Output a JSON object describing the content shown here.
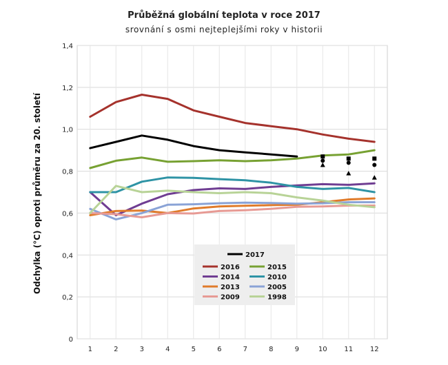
{
  "chart_data": {
    "type": "line",
    "title": "Průběžná globální teplota v roce 2017",
    "subtitle": "srovnání s osmi nejteplejšími roky v historii",
    "ylabel": "Odchylka (°C) oproti průměru za 20. století",
    "xlabel": "",
    "x": [
      1,
      2,
      3,
      4,
      5,
      6,
      7,
      8,
      9,
      10,
      11,
      12
    ],
    "ylim": [
      0,
      1.4
    ],
    "yticks": [
      "0",
      "0,2",
      "0,4",
      "0,6",
      "0,8",
      "1,0",
      "1,2",
      "1,4"
    ],
    "grid": true,
    "legend_position": "bottom-center",
    "series": [
      {
        "name": "2017",
        "color": "#000000",
        "values": [
          0.91,
          0.94,
          0.97,
          0.95,
          0.92,
          0.9,
          0.89,
          0.88,
          0.87,
          null,
          null,
          null
        ]
      },
      {
        "name": "2016",
        "color": "#a5322c",
        "values": [
          1.06,
          1.13,
          1.165,
          1.145,
          1.09,
          1.06,
          1.03,
          1.015,
          1.0,
          0.975,
          0.955,
          0.94
        ]
      },
      {
        "name": "2015",
        "color": "#77a132",
        "values": [
          0.815,
          0.85,
          0.865,
          0.845,
          0.848,
          0.852,
          0.848,
          0.852,
          0.86,
          0.875,
          0.88,
          0.9
        ]
      },
      {
        "name": "2014",
        "color": "#6f3d92",
        "values": [
          0.7,
          0.59,
          0.645,
          0.69,
          0.71,
          0.718,
          0.715,
          0.725,
          0.732,
          0.738,
          0.735,
          0.742
        ]
      },
      {
        "name": "2010",
        "color": "#2e93a5",
        "values": [
          0.7,
          0.7,
          0.75,
          0.77,
          0.768,
          0.762,
          0.757,
          0.745,
          0.725,
          0.715,
          0.72,
          0.7
        ]
      },
      {
        "name": "2013",
        "color": "#e07b2a",
        "values": [
          0.59,
          0.61,
          0.612,
          0.6,
          0.622,
          0.632,
          0.635,
          0.638,
          0.64,
          0.652,
          0.665,
          0.67
        ]
      },
      {
        "name": "2005",
        "color": "#8aa3d6",
        "values": [
          0.62,
          0.57,
          0.6,
          0.64,
          0.642,
          0.647,
          0.65,
          0.648,
          0.645,
          0.647,
          0.652,
          0.652
        ]
      },
      {
        "name": "2009",
        "color": "#e79a94",
        "values": [
          0.6,
          0.595,
          0.58,
          0.6,
          0.598,
          0.61,
          0.614,
          0.62,
          0.63,
          0.632,
          0.636,
          0.636
        ]
      },
      {
        "name": "1998",
        "color": "#b8d397",
        "values": [
          0.6,
          0.73,
          0.7,
          0.707,
          0.7,
          0.695,
          0.7,
          0.695,
          0.675,
          0.66,
          0.64,
          0.628
        ]
      }
    ],
    "markers": [
      {
        "symbol": "square",
        "x": 10,
        "y": 0.87
      },
      {
        "symbol": "circle",
        "x": 10,
        "y": 0.85
      },
      {
        "symbol": "triangle",
        "x": 10,
        "y": 0.83
      },
      {
        "symbol": "square",
        "x": 11,
        "y": 0.86
      },
      {
        "symbol": "circle",
        "x": 11,
        "y": 0.84
      },
      {
        "symbol": "triangle",
        "x": 11,
        "y": 0.79
      },
      {
        "symbol": "square",
        "x": 12,
        "y": 0.86
      },
      {
        "symbol": "circle",
        "x": 12,
        "y": 0.83
      },
      {
        "symbol": "triangle",
        "x": 12,
        "y": 0.77
      }
    ]
  }
}
